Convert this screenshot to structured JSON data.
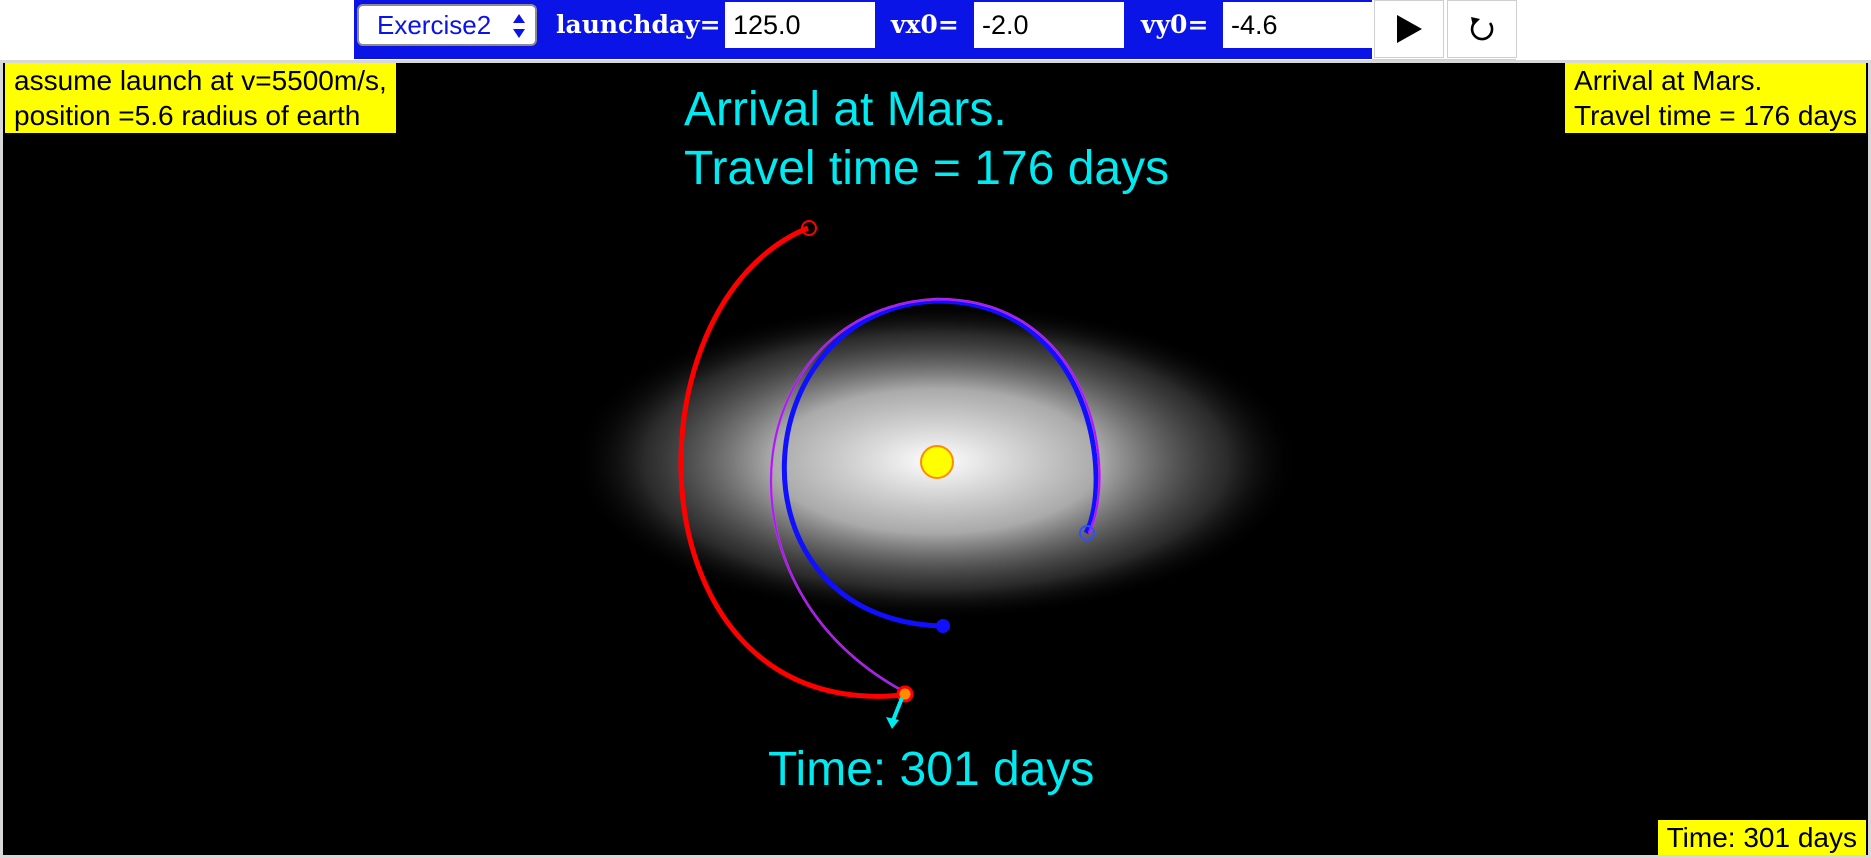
{
  "toolbar": {
    "exercise_select": "Exercise2",
    "launchday_label": "launchday=",
    "launchday_value": "125.0",
    "vx0_label": "vx0=",
    "vx0_value": "-2.0",
    "vy0_label": "vy0=",
    "vy0_value": "-4.6",
    "play_icon": "play-icon",
    "reset_icon": "reset-icon"
  },
  "sim": {
    "launch_note": "assume launch at v=5500m/s,\nposition =5.6 radius of earth",
    "arrival_note": "Arrival at Mars.\nTravel time = 176 days",
    "arrival_title_line1": "Arrival at Mars.",
    "arrival_title_line2": "Travel time = 176 days",
    "time_label": "Time: 301 days",
    "time_corner": "Time: 301 days"
  },
  "colors": {
    "toolbar": "#0a14e6",
    "highlight_box": "#ffff00",
    "overlay_text": "#00eaf2",
    "mars_orbit": "#ff0000",
    "earth_orbit": "#0a14e6",
    "transfer_orbit": "#ff40ff",
    "spacecraft_path": "#a020f0",
    "sun": "#ffff00"
  }
}
